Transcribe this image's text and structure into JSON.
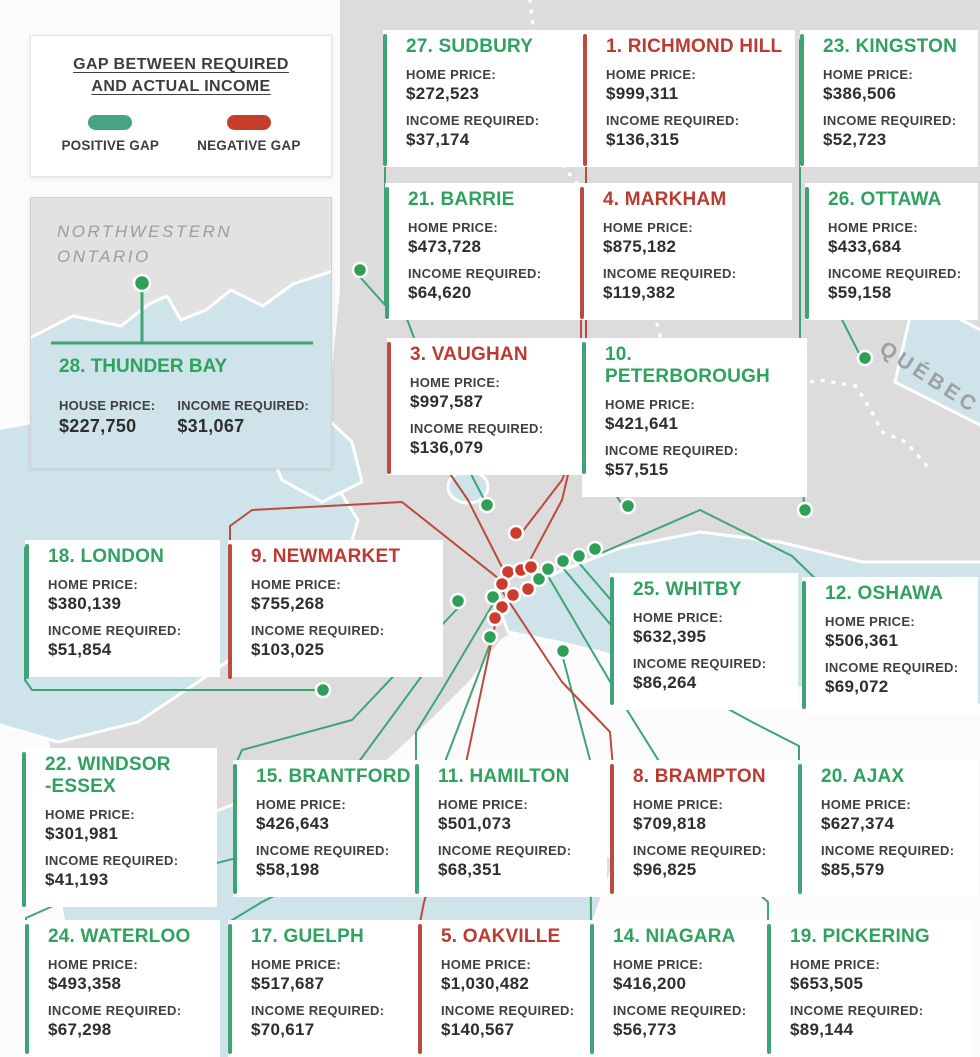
{
  "colors": {
    "positive_text": "#2fa25f",
    "negative_text": "#bb3a31",
    "positive_line": "#3fa474",
    "negative_line": "#bd4a3f",
    "positive_dot": "#2f9e56",
    "negative_dot": "#cc3b2b",
    "pill_positive": "#46a482",
    "pill_negative": "#c63d2c"
  },
  "legend": {
    "title_line1": "GAP BETWEEN REQUIRED",
    "title_line2": "AND ACTUAL INCOME",
    "positive_label": "POSITIVE GAP",
    "negative_label": "NEGATIVE GAP"
  },
  "inset": {
    "region_label": "NORTHWESTERN\nONTARIO",
    "city_name": "28. THUNDER BAY",
    "price_label": "HOUSE PRICE:",
    "price_value": "$227,750",
    "income_label": "INCOME REQUIRED:",
    "income_value": "$31,067",
    "gap": "positive"
  },
  "map": {
    "quebec_label": "QUÉBEC"
  },
  "chart_data": {
    "type": "map-infographic",
    "title": "Gap between required and actual income — Ontario home prices",
    "labels": {
      "home_price": "HOME PRICE:",
      "income_required": "INCOME REQUIRED:"
    },
    "cities": [
      {
        "name": "27. SUDBURY",
        "home_price": "$272,523",
        "income_required": "$37,174",
        "gap": "positive"
      },
      {
        "name": "1. RICHMOND HILL",
        "home_price": "$999,311",
        "income_required": "$136,315",
        "gap": "negative"
      },
      {
        "name": "23. KINGSTON",
        "home_price": "$386,506",
        "income_required": "$52,723",
        "gap": "positive"
      },
      {
        "name": "21. BARRIE",
        "home_price": "$473,728",
        "income_required": "$64,620",
        "gap": "positive"
      },
      {
        "name": "4. MARKHAM",
        "home_price": "$875,182",
        "income_required": "$119,382",
        "gap": "negative"
      },
      {
        "name": "26. OTTAWA",
        "home_price": "$433,684",
        "income_required": "$59,158",
        "gap": "positive"
      },
      {
        "name": "3. VAUGHAN",
        "home_price": "$997,587",
        "income_required": "$136,079",
        "gap": "negative"
      },
      {
        "name": "10. PETERBOROUGH",
        "home_price": "$421,641",
        "income_required": "$57,515",
        "gap": "positive"
      },
      {
        "name": "18. LONDON",
        "home_price": "$380,139",
        "income_required": "$51,854",
        "gap": "positive"
      },
      {
        "name": "9. NEWMARKET",
        "home_price": "$755,268",
        "income_required": "$103,025",
        "gap": "negative"
      },
      {
        "name": "25. WHITBY",
        "home_price": "$632,395",
        "income_required": "$86,264",
        "gap": "positive"
      },
      {
        "name": "12. OSHAWA",
        "home_price": "$506,361",
        "income_required": "$69,072",
        "gap": "positive"
      },
      {
        "name": "22. WINDSOR\n-ESSEX",
        "home_price": "$301,981",
        "income_required": "$41,193",
        "gap": "positive"
      },
      {
        "name": "15. BRANTFORD",
        "home_price": "$426,643",
        "income_required": "$58,198",
        "gap": "positive"
      },
      {
        "name": "11. HAMILTON",
        "home_price": "$501,073",
        "income_required": "$68,351",
        "gap": "positive"
      },
      {
        "name": "8. BRAMPTON",
        "home_price": "$709,818",
        "income_required": "$96,825",
        "gap": "negative"
      },
      {
        "name": "20. AJAX",
        "home_price": "$627,374",
        "income_required": "$85,579",
        "gap": "positive"
      },
      {
        "name": "24. WATERLOO",
        "home_price": "$493,358",
        "income_required": "$67,298",
        "gap": "positive"
      },
      {
        "name": "17. GUELPH",
        "home_price": "$517,687",
        "income_required": "$70,617",
        "gap": "positive"
      },
      {
        "name": "5. OAKVILLE",
        "home_price": "$1,030,482",
        "income_required": "$140,567",
        "gap": "negative"
      },
      {
        "name": "14. NIAGARA",
        "home_price": "$416,200",
        "income_required": "$56,773",
        "gap": "positive"
      },
      {
        "name": "19. PICKERING",
        "home_price": "$653,505",
        "income_required": "$89,144",
        "gap": "positive"
      }
    ],
    "markers": {
      "positive": [
        [
          360,
          270
        ],
        [
          487,
          505
        ],
        [
          628,
          506
        ],
        [
          805,
          510
        ],
        [
          865,
          358
        ],
        [
          323,
          690
        ],
        [
          163,
          780
        ],
        [
          432,
          655
        ],
        [
          458,
          601
        ],
        [
          490,
          637
        ],
        [
          493,
          597
        ],
        [
          539,
          579
        ],
        [
          548,
          569
        ],
        [
          563,
          561
        ],
        [
          579,
          556
        ],
        [
          595,
          549
        ],
        [
          563,
          651
        ]
      ],
      "negative": [
        [
          516,
          533
        ],
        [
          508,
          572
        ],
        [
          521,
          570
        ],
        [
          531,
          567
        ],
        [
          502,
          584
        ],
        [
          513,
          595
        ],
        [
          528,
          589
        ],
        [
          502,
          607
        ],
        [
          495,
          618
        ]
      ]
    }
  }
}
